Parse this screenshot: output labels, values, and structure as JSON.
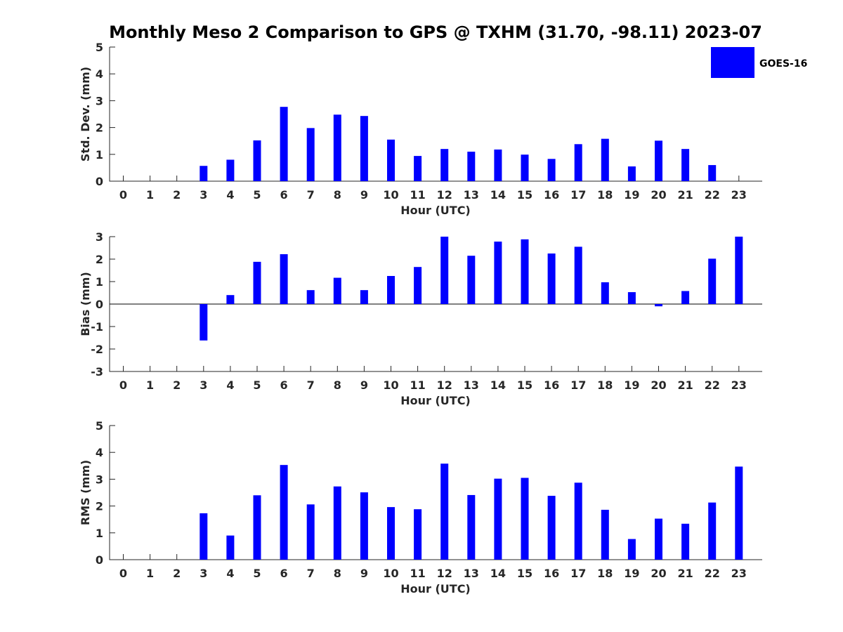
{
  "title": "Monthly Meso 2 Comparison to GPS @ TXHM (31.70, -98.11) 2023-07",
  "legend": {
    "label": "GOES-16",
    "color": "#0000ff",
    "placement": "top-right"
  },
  "chart_data": [
    {
      "type": "bar",
      "xlabel": "Hour (UTC)",
      "ylabel": "Std. Dev. (mm)",
      "ylim": [
        0,
        5
      ],
      "yticks": [
        0,
        1,
        2,
        3,
        4,
        5
      ],
      "categories": [
        "0",
        "1",
        "2",
        "3",
        "4",
        "5",
        "6",
        "7",
        "8",
        "9",
        "10",
        "11",
        "12",
        "13",
        "14",
        "15",
        "16",
        "17",
        "18",
        "19",
        "20",
        "21",
        "22",
        "23"
      ],
      "values": [
        null,
        null,
        null,
        0.57,
        0.8,
        1.52,
        2.77,
        1.98,
        2.48,
        2.43,
        1.55,
        0.94,
        1.2,
        1.1,
        1.18,
        0.99,
        0.83,
        1.38,
        1.58,
        0.55,
        1.51,
        1.2,
        0.6,
        null
      ],
      "grid": false
    },
    {
      "type": "bar",
      "xlabel": "Hour (UTC)",
      "ylabel": "Bias (mm)",
      "ylim": [
        -3,
        3
      ],
      "yticks": [
        -3,
        -2,
        -1,
        0,
        1,
        2,
        3
      ],
      "categories": [
        "0",
        "1",
        "2",
        "3",
        "4",
        "5",
        "6",
        "7",
        "8",
        "9",
        "10",
        "11",
        "12",
        "13",
        "14",
        "15",
        "16",
        "17",
        "18",
        "19",
        "20",
        "21",
        "22",
        "23"
      ],
      "values": [
        null,
        null,
        null,
        -1.62,
        0.4,
        1.88,
        2.22,
        0.62,
        1.17,
        0.62,
        1.25,
        1.65,
        3.0,
        2.15,
        2.78,
        2.88,
        2.25,
        2.55,
        0.97,
        0.53,
        -0.1,
        0.58,
        2.02,
        3.0
      ],
      "grid": false
    },
    {
      "type": "bar",
      "xlabel": "Hour (UTC)",
      "ylabel": "RMS (mm)",
      "ylim": [
        0,
        5
      ],
      "yticks": [
        0,
        1,
        2,
        3,
        4,
        5
      ],
      "categories": [
        "0",
        "1",
        "2",
        "3",
        "4",
        "5",
        "6",
        "7",
        "8",
        "9",
        "10",
        "11",
        "12",
        "13",
        "14",
        "15",
        "16",
        "17",
        "18",
        "19",
        "20",
        "21",
        "22",
        "23"
      ],
      "values": [
        null,
        null,
        null,
        1.73,
        0.9,
        2.4,
        3.53,
        2.06,
        2.73,
        2.51,
        1.96,
        1.88,
        3.58,
        2.41,
        3.02,
        3.05,
        2.38,
        2.87,
        1.86,
        0.77,
        1.53,
        1.34,
        2.13,
        3.47
      ],
      "grid": false
    }
  ]
}
